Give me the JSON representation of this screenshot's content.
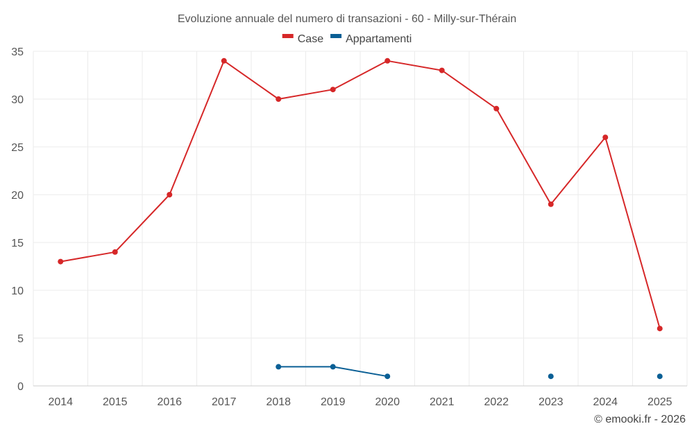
{
  "chart_data": {
    "type": "line",
    "title": "Evoluzione annuale del numero di transazioni - 60 - Milly-sur-Thérain",
    "categories": [
      "2014",
      "2015",
      "2016",
      "2017",
      "2018",
      "2019",
      "2020",
      "2021",
      "2022",
      "2023",
      "2024",
      "2025"
    ],
    "series": [
      {
        "name": "Case",
        "color": "#d62728",
        "values": [
          13,
          14,
          20,
          34,
          30,
          31,
          34,
          33,
          29,
          19,
          26,
          6
        ]
      },
      {
        "name": "Appartamenti",
        "color": "#0a5f95",
        "values": [
          null,
          null,
          null,
          null,
          2,
          2,
          1,
          null,
          null,
          1,
          null,
          1
        ]
      }
    ],
    "ylim": [
      0,
      35
    ],
    "yticks": [
      0,
      5,
      10,
      15,
      20,
      25,
      30,
      35
    ],
    "xlabel": "",
    "ylabel": "",
    "grid": true,
    "legend_position": "top-center"
  },
  "credit": "© emooki.fr - 2026"
}
